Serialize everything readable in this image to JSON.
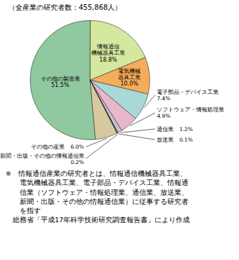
{
  "chart_data": {
    "type": "pie",
    "title": "（全産業の研究者数：455,868人）",
    "categories": [
      "情報通信\n機械器具工業\n18.8%",
      "電気機械\n器具工業\n10.0%",
      "電子部品・デバイス工業\n7.4%",
      "ソフトウェア・情報処理業\n4.9%",
      "通信業　1.2%",
      "放送業　0.1%",
      "新聞・出版・その他の情報通信業\n0.2%",
      "その他の産業　6.0%",
      "その他の製造業\n51.5%"
    ],
    "values": [
      18.8,
      10.0,
      7.4,
      4.9,
      1.2,
      0.1,
      0.2,
      6.0,
      51.5
    ],
    "colors": [
      "#d4e8a0",
      "#f5ad5a",
      "#a8d8d8",
      "#e8b8c8",
      "#c8c0d8",
      "#404040",
      "#90c890",
      "#d8c8a0",
      "#90c8a0"
    ],
    "annotations": [
      "※　情報通信産業の研究者とは、情報通信機械器具工業、",
      "　　電気機械器具工業、電子部品・デバイス工業、情報通",
      "　　信業（ソフトウェア・情報処理業、通信業、放送業、",
      "　　新聞・出版・その他の情報通信業）に従事する研究者",
      "　　を指す",
      "　総務省「平成17年科学技術研究調査報告書」により作成"
    ]
  }
}
